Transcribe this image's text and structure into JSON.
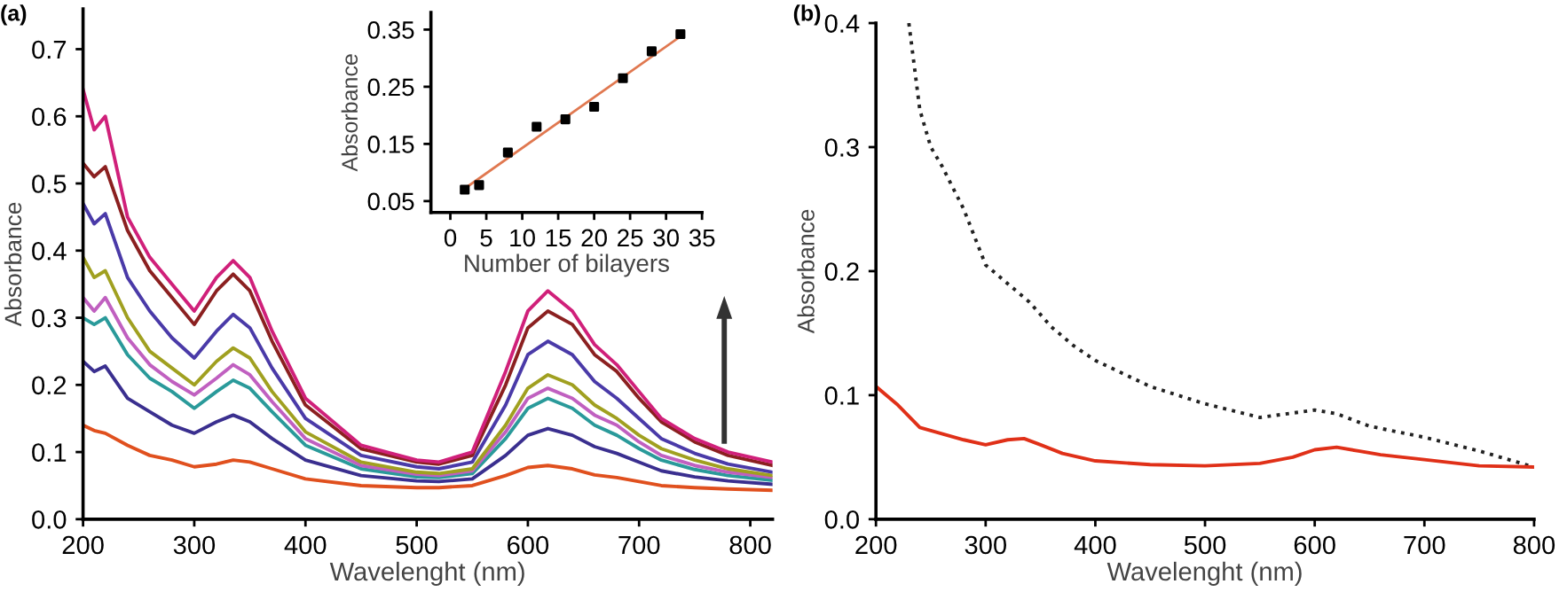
{
  "chart_data": [
    {
      "type": "line",
      "xlabel": "Wavelenght (nm)",
      "ylabel": "Absorbance",
      "annotations": [
        "(a)"
      ],
      "xlim": [
        200,
        820
      ],
      "ylim": [
        0,
        0.76
      ],
      "xticks": [
        200,
        300,
        400,
        500,
        600,
        700,
        800
      ],
      "yticks": [
        {
          "value": 0,
          "label": "0.0"
        },
        0.1,
        0.2,
        0.3,
        0.4,
        0.5,
        0.6,
        0.7
      ],
      "marker": "none",
      "line_style": "solid",
      "x": [
        200,
        210,
        220,
        240,
        260,
        280,
        300,
        320,
        335,
        350,
        370,
        400,
        450,
        500,
        520,
        550,
        580,
        600,
        618,
        640,
        660,
        680,
        700,
        720,
        750,
        780,
        820
      ],
      "series": [
        {
          "color": "#e0501e",
          "values": [
            0.14,
            0.132,
            0.128,
            0.11,
            0.095,
            0.088,
            0.078,
            0.082,
            0.088,
            0.085,
            0.075,
            0.06,
            0.05,
            0.047,
            0.047,
            0.05,
            0.065,
            0.077,
            0.08,
            0.075,
            0.066,
            0.062,
            0.056,
            0.05,
            0.047,
            0.045,
            0.043
          ]
        },
        {
          "color": "#3a2f8f",
          "values": [
            0.235,
            0.22,
            0.228,
            0.18,
            0.16,
            0.14,
            0.128,
            0.145,
            0.155,
            0.145,
            0.12,
            0.088,
            0.065,
            0.057,
            0.056,
            0.06,
            0.095,
            0.125,
            0.135,
            0.125,
            0.108,
            0.098,
            0.085,
            0.072,
            0.063,
            0.057,
            0.052
          ]
        },
        {
          "color": "#2a9a9a",
          "values": [
            0.3,
            0.29,
            0.3,
            0.245,
            0.21,
            0.19,
            0.165,
            0.19,
            0.207,
            0.195,
            0.16,
            0.11,
            0.075,
            0.063,
            0.062,
            0.068,
            0.12,
            0.165,
            0.18,
            0.165,
            0.14,
            0.125,
            0.105,
            0.088,
            0.074,
            0.065,
            0.058
          ]
        },
        {
          "color": "#c060c0",
          "values": [
            0.33,
            0.31,
            0.33,
            0.27,
            0.23,
            0.205,
            0.185,
            0.21,
            0.23,
            0.215,
            0.175,
            0.12,
            0.08,
            0.067,
            0.065,
            0.072,
            0.13,
            0.18,
            0.195,
            0.18,
            0.155,
            0.14,
            0.115,
            0.095,
            0.08,
            0.07,
            0.062
          ]
        },
        {
          "color": "#a0a020",
          "values": [
            0.39,
            0.36,
            0.37,
            0.3,
            0.25,
            0.225,
            0.2,
            0.235,
            0.255,
            0.24,
            0.19,
            0.13,
            0.085,
            0.07,
            0.068,
            0.075,
            0.14,
            0.195,
            0.215,
            0.2,
            0.17,
            0.15,
            0.125,
            0.105,
            0.088,
            0.075,
            0.065
          ]
        },
        {
          "color": "#4a3aa8",
          "values": [
            0.47,
            0.44,
            0.455,
            0.36,
            0.31,
            0.27,
            0.24,
            0.28,
            0.305,
            0.285,
            0.225,
            0.15,
            0.095,
            0.078,
            0.075,
            0.085,
            0.17,
            0.245,
            0.265,
            0.245,
            0.205,
            0.18,
            0.15,
            0.12,
            0.098,
            0.082,
            0.07
          ]
        },
        {
          "color": "#8b2020",
          "values": [
            0.53,
            0.51,
            0.525,
            0.43,
            0.37,
            0.33,
            0.29,
            0.34,
            0.365,
            0.34,
            0.265,
            0.17,
            0.105,
            0.085,
            0.082,
            0.095,
            0.2,
            0.285,
            0.31,
            0.29,
            0.245,
            0.22,
            0.18,
            0.145,
            0.115,
            0.095,
            0.08
          ]
        },
        {
          "color": "#d0207a",
          "values": [
            0.64,
            0.58,
            0.6,
            0.45,
            0.39,
            0.35,
            0.31,
            0.36,
            0.385,
            0.36,
            0.28,
            0.18,
            0.11,
            0.088,
            0.085,
            0.1,
            0.22,
            0.31,
            0.34,
            0.31,
            0.26,
            0.23,
            0.19,
            0.15,
            0.12,
            0.1,
            0.085
          ]
        }
      ]
    },
    {
      "type": "scatter",
      "xlabel": "Number of bilayers",
      "ylabel": "Absorbance",
      "xlim": [
        -2.7,
        35
      ],
      "ylim": [
        0.03,
        0.38
      ],
      "xticks": [
        0,
        5,
        10,
        15,
        20,
        25,
        30,
        35
      ],
      "yticks": [
        0.05,
        0.15,
        0.25,
        0.35
      ],
      "series": [
        {
          "color": "#000000",
          "marker": "square",
          "x": [
            2,
            4,
            8,
            12,
            16,
            20,
            24,
            28,
            32
          ],
          "values": [
            0.07,
            0.078,
            0.135,
            0.18,
            0.193,
            0.215,
            0.265,
            0.312,
            0.342
          ]
        },
        {
          "type": "line",
          "marker": "none",
          "color": "#e07850",
          "x": [
            2,
            32
          ],
          "values": [
            0.072,
            0.338
          ]
        }
      ]
    },
    {
      "type": "line",
      "xlabel": "Wavelenght (nm)",
      "ylabel": "Absorbance",
      "annotations": [
        "(b)"
      ],
      "xlim": [
        200,
        800
      ],
      "ylim": [
        0,
        0.4
      ],
      "xticks": [
        200,
        300,
        400,
        500,
        600,
        700,
        800
      ],
      "yticks": [
        {
          "value": 0,
          "label": "0.0"
        },
        0.1,
        0.2,
        0.3,
        0.4
      ],
      "marker": "none",
      "series": [
        {
          "color": "#222222",
          "line_style": "dotted",
          "x": [
            230,
            240,
            250,
            260,
            280,
            300,
            320,
            340,
            360,
            380,
            400,
            450,
            500,
            550,
            575,
            600,
            620,
            650,
            700,
            750,
            800
          ],
          "values": [
            0.4,
            0.33,
            0.3,
            0.285,
            0.25,
            0.205,
            0.19,
            0.175,
            0.155,
            0.14,
            0.128,
            0.107,
            0.093,
            0.082,
            0.085,
            0.088,
            0.085,
            0.075,
            0.066,
            0.055,
            0.042
          ]
        },
        {
          "color": "#e03018",
          "line_style": "solid",
          "x": [
            200,
            220,
            240,
            260,
            280,
            300,
            320,
            335,
            350,
            370,
            400,
            450,
            500,
            550,
            580,
            600,
            620,
            640,
            660,
            700,
            750,
            800
          ],
          "values": [
            0.107,
            0.092,
            0.074,
            0.069,
            0.064,
            0.06,
            0.064,
            0.065,
            0.06,
            0.053,
            0.047,
            0.044,
            0.043,
            0.045,
            0.05,
            0.056,
            0.058,
            0.055,
            0.052,
            0.048,
            0.043,
            0.042
          ]
        }
      ]
    }
  ]
}
